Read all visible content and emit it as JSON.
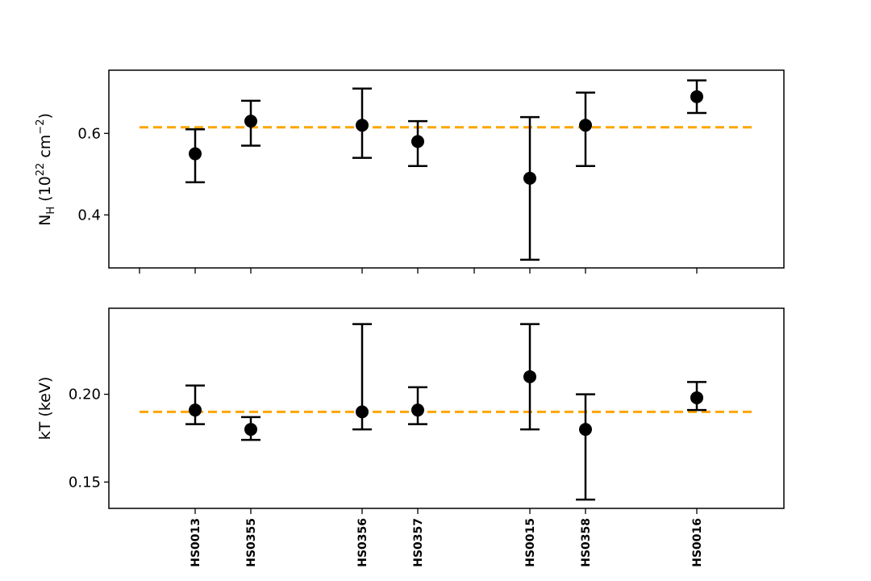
{
  "chart_data": [
    {
      "type": "scatter",
      "panel": "top",
      "ylabel": {
        "main": "N",
        "sub": "H",
        "rest": " (10",
        "sup": "22",
        "rest2": " cm",
        "sup2": "−2",
        "close": ")"
      },
      "ylim": [
        0.27,
        0.755
      ],
      "yticks": [
        0.4,
        0.6
      ],
      "ytick_labels": [
        "0.4",
        "0.6"
      ],
      "grid": false,
      "reference_line": {
        "y": 0.615,
        "color": "#FFA500",
        "style": "dashed"
      },
      "points": [
        {
          "label": "HS0013",
          "y": 0.55,
          "err_low": 0.48,
          "err_high": 0.61
        },
        {
          "label": "HS0355",
          "y": 0.63,
          "err_low": 0.57,
          "err_high": 0.68
        },
        {
          "label": "HS0356",
          "y": 0.62,
          "err_low": 0.54,
          "err_high": 0.71
        },
        {
          "label": "HS0357",
          "y": 0.58,
          "err_low": 0.52,
          "err_high": 0.63
        },
        {
          "label": "HS0015",
          "y": 0.49,
          "err_low": 0.29,
          "err_high": 0.64
        },
        {
          "label": "HS0358",
          "y": 0.62,
          "err_low": 0.52,
          "err_high": 0.7
        },
        {
          "label": "HS0016",
          "y": 0.69,
          "err_low": 0.65,
          "err_high": 0.73
        }
      ]
    },
    {
      "type": "scatter",
      "panel": "bottom",
      "ylabel": "kT (keV)",
      "ylim": [
        0.135,
        0.249
      ],
      "yticks": [
        0.15,
        0.2
      ],
      "ytick_labels": [
        "0.15",
        "0.20"
      ],
      "grid": false,
      "reference_line": {
        "y": 0.19,
        "color": "#FFA500",
        "style": "dashed"
      },
      "points": [
        {
          "label": "HS0013",
          "y": 0.191,
          "err_low": 0.183,
          "err_high": 0.205
        },
        {
          "label": "HS0355",
          "y": 0.18,
          "err_low": 0.174,
          "err_high": 0.187
        },
        {
          "label": "HS0356",
          "y": 0.19,
          "err_low": 0.18,
          "err_high": 0.24
        },
        {
          "label": "HS0357",
          "y": 0.191,
          "err_low": 0.183,
          "err_high": 0.204
        },
        {
          "label": "HS0015",
          "y": 0.21,
          "err_low": 0.18,
          "err_high": 0.24
        },
        {
          "label": "HS0358",
          "y": 0.18,
          "err_low": 0.14,
          "err_high": 0.2
        },
        {
          "label": "HS0016",
          "y": 0.198,
          "err_low": 0.191,
          "err_high": 0.207
        }
      ]
    }
  ],
  "colors": {
    "marker": "#000000",
    "reference": "#FFA500",
    "axis": "#000000"
  }
}
